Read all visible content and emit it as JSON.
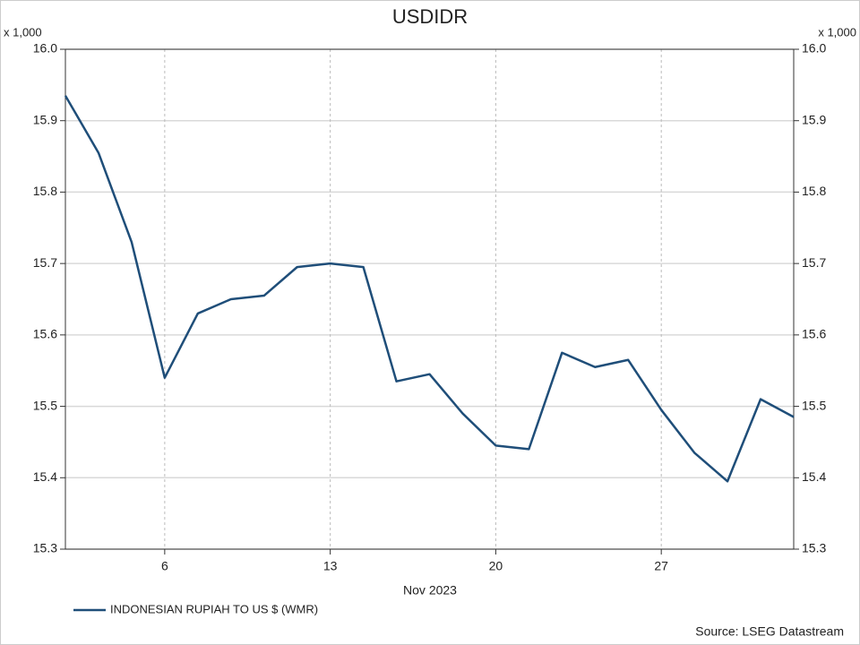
{
  "chart_data": {
    "type": "line",
    "title": "USDIDR",
    "y_unit_label": "x 1,000",
    "x_label": "Nov 2023",
    "source": "Source: LSEG Datastream",
    "x": [
      "2023-11-01",
      "2023-11-02",
      "2023-11-03",
      "2023-11-06",
      "2023-11-07",
      "2023-11-08",
      "2023-11-09",
      "2023-11-10",
      "2023-11-13",
      "2023-11-14",
      "2023-11-15",
      "2023-11-16",
      "2023-11-17",
      "2023-11-20",
      "2023-11-21",
      "2023-11-22",
      "2023-11-23",
      "2023-11-24",
      "2023-11-27",
      "2023-11-28",
      "2023-11-29",
      "2023-11-30",
      "2023-12-01"
    ],
    "series": [
      {
        "name": "INDONESIAN RUPIAH TO US $ (WMR)",
        "color": "#1f4e79",
        "values": [
          15.935,
          15.855,
          15.73,
          15.54,
          15.63,
          15.65,
          15.655,
          15.695,
          15.7,
          15.695,
          15.535,
          15.545,
          15.49,
          15.445,
          15.44,
          15.575,
          15.555,
          15.565,
          15.495,
          15.435,
          15.395,
          15.51,
          15.485
        ]
      }
    ],
    "xlim": [
      "2023-11-01",
      "2023-12-01"
    ],
    "xticks": [
      {
        "value": "2023-11-06",
        "label": "6"
      },
      {
        "value": "2023-11-13",
        "label": "13"
      },
      {
        "value": "2023-11-20",
        "label": "20"
      },
      {
        "value": "2023-11-27",
        "label": "27"
      }
    ],
    "ylim": [
      15.3,
      16.0
    ],
    "yticks": [
      15.3,
      15.4,
      15.5,
      15.6,
      15.7,
      15.8,
      15.9,
      {
        "value": 16.0,
        "label": "16.0"
      }
    ],
    "grid": true,
    "legend": "bottom-left"
  }
}
